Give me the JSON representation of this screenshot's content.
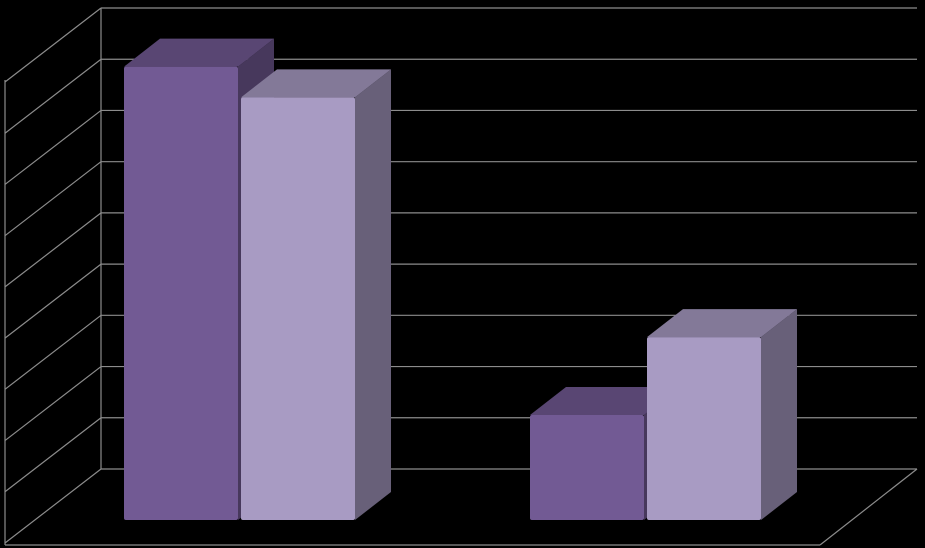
{
  "chart_data": {
    "type": "bar3d",
    "categories": [
      null,
      null
    ],
    "series": [
      {
        "color": "#725a94",
        "values": [
          8.85,
          2.05
        ]
      },
      {
        "color": "#a89bc3",
        "values": [
          8.25,
          3.57
        ]
      }
    ],
    "ylim": [
      0,
      9
    ],
    "yticks": [
      0,
      1,
      2,
      3,
      4,
      5,
      6,
      7,
      8,
      9
    ],
    "grid": true
  }
}
